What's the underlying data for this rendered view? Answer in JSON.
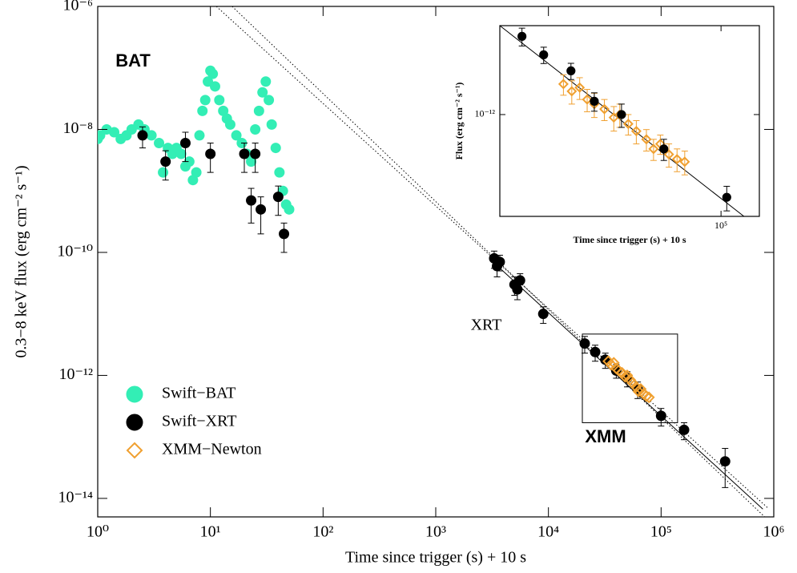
{
  "chart_data": [
    {
      "type": "scatter",
      "x_label": "Time since trigger (s) + 10 s",
      "y_label": "0.3−8 keV flux (erg cm⁻² s⁻¹)",
      "log_x": true,
      "log_y": true,
      "xlim": [
        1,
        1000000
      ],
      "ylim": [
        5e-15,
        1e-06
      ],
      "xticks": [
        {
          "value": 1,
          "label": "10⁰"
        },
        {
          "value": 10,
          "label": "10¹"
        },
        {
          "value": 100,
          "label": "10²"
        },
        {
          "value": 1000,
          "label": "10³"
        },
        {
          "value": 10000,
          "label": "10⁴"
        },
        {
          "value": 100000,
          "label": "10⁵"
        },
        {
          "value": 1000000,
          "label": "10⁶"
        }
      ],
      "yticks": [
        {
          "value": 1e-06,
          "label": "10⁻⁶"
        },
        {
          "value": 1e-08,
          "label": "10⁻⁸"
        },
        {
          "value": 1e-10,
          "label": "10⁻¹⁰"
        },
        {
          "value": 1e-12,
          "label": "10⁻¹²"
        },
        {
          "value": 1e-14,
          "label": "10⁻¹⁴"
        }
      ],
      "legend": "lower left",
      "series": [
        {
          "name": "Swift−BAT",
          "color": "#33eeb5",
          "marker": "circle",
          "filled": true,
          "x": [
            1.0,
            1.05,
            1.2,
            1.4,
            1.6,
            1.8,
            2.0,
            2.3,
            2.6,
            3.0,
            3.5,
            3.8,
            4.2,
            4.6,
            5.0,
            5.5,
            6.0,
            6.5,
            7.0,
            7.5,
            8.0,
            8.5,
            9.0,
            9.5,
            10,
            10.5,
            11,
            12,
            13,
            14,
            15,
            17,
            19,
            21,
            23,
            25,
            27,
            29,
            31,
            33,
            35,
            38,
            41,
            44,
            47,
            50
          ],
          "values": [
            7e-09,
            8e-09,
            1e-08,
            9e-09,
            7e-09,
            8e-09,
            1e-08,
            1.2e-08,
            1e-08,
            8e-09,
            6e-09,
            2e-09,
            5e-09,
            4e-09,
            5e-09,
            4e-09,
            2.5e-09,
            3e-09,
            1.5e-09,
            2e-09,
            8e-09,
            2e-08,
            3e-08,
            6e-08,
            9e-08,
            8e-08,
            5e-08,
            3e-08,
            2e-08,
            1.5e-08,
            1.2e-08,
            8e-09,
            6e-09,
            4e-09,
            3e-09,
            1e-08,
            2e-08,
            4e-08,
            6e-08,
            3e-08,
            1.2e-08,
            5e-09,
            2e-09,
            1e-09,
            6e-10,
            5e-10
          ]
        },
        {
          "name": "Swift−XRT",
          "color": "#000000",
          "marker": "circle",
          "filled": true,
          "x": [
            2.5,
            4,
            6,
            10,
            20,
            23,
            25,
            28,
            40,
            45,
            3300,
            3500,
            3700,
            5000,
            5300,
            5600,
            9000,
            21000,
            26000,
            32000,
            40000,
            50000,
            62000,
            100000,
            160000,
            370000
          ],
          "values": [
            8e-09,
            3e-09,
            6e-09,
            4e-09,
            4e-09,
            7e-10,
            4e-09,
            5e-10,
            8e-10,
            2e-10,
            8e-11,
            6e-11,
            7e-11,
            3e-11,
            2.5e-11,
            3.5e-11,
            1e-11,
            3.3e-12,
            2.4e-12,
            1.8e-12,
            1.2e-12,
            9e-13,
            6e-13,
            2.2e-13,
            1.3e-13,
            4e-14
          ],
          "yerr": [
            3e-09,
            1.5e-09,
            3e-09,
            2e-09,
            2e-09,
            4e-10,
            2e-09,
            3e-10,
            4e-10,
            1e-10,
            2.5e-11,
            2e-11,
            2e-11,
            1e-11,
            8e-12,
            1e-11,
            3e-12,
            1e-12,
            7e-13,
            5e-13,
            3e-13,
            2.5e-13,
            1.8e-13,
            7e-14,
            4e-14,
            2.5e-14
          ]
        },
        {
          "name": "XMM−Newton",
          "color": "#f0a030",
          "marker": "diamond",
          "filled": false,
          "x": [
            34000,
            36000,
            38000,
            40000,
            42000,
            45000,
            48000,
            50000,
            53000,
            56000,
            60000,
            63000,
            66000,
            70000,
            74000,
            78000
          ],
          "values": [
            1.7e-12,
            1.5e-12,
            1.6e-12,
            1.3e-12,
            1.2e-12,
            1.1e-12,
            9.5e-13,
            1e-12,
            8.5e-13,
            7.5e-13,
            6.5e-13,
            5.5e-13,
            6e-13,
            5e-13,
            4.6e-13,
            4.4e-13
          ]
        }
      ],
      "fit_lines": [
        {
          "style": "dotted",
          "x": [
            11.3,
            900000
          ],
          "values": [
            1e-06,
            6.8e-15
          ]
        },
        {
          "style": "dotted",
          "x": [
            15.6,
            830000
          ],
          "values": [
            1e-06,
            5e-15
          ]
        },
        {
          "style": "solid",
          "x": [
            3000,
            800000
          ],
          "values": [
            7.9e-11,
            6.7e-15
          ]
        }
      ],
      "annotations": [
        {
          "text": "BAT",
          "color": "#33eeb5"
        },
        {
          "text": "XRT",
          "color": "#000000"
        },
        {
          "text": "XMM",
          "color": "#f0a030"
        }
      ],
      "zoom_box": {
        "xlim": [
          20000,
          140000
        ],
        "ylim": [
          1.7e-13,
          4.7e-12
        ]
      }
    },
    {
      "type": "scatter",
      "x_label": "Time since trigger (s) + 10 s",
      "y_label": "Flux (erg cm⁻² s⁻¹)",
      "log_x": true,
      "log_y": true,
      "xlim": [
        22000,
        130000
      ],
      "ylim": [
        1.7e-13,
        4.7e-12
      ],
      "xticks": [
        {
          "value": 100000,
          "label": "10⁵"
        }
      ],
      "yticks": [
        {
          "value": 1e-12,
          "label": "10⁻¹²"
        }
      ],
      "series": [
        {
          "color": "#f0a030",
          "marker": "diamond",
          "filled": false,
          "x": [
            34000,
            36000,
            38000,
            40000,
            42000,
            45000,
            48000,
            50000,
            53000,
            56000,
            60000,
            63000,
            66000,
            70000,
            74000,
            78000
          ],
          "values": [
            1.7e-12,
            1.5e-12,
            1.6e-12,
            1.3e-12,
            1.2e-12,
            1.1e-12,
            9.5e-13,
            1e-12,
            8.5e-13,
            7.5e-13,
            6.5e-13,
            5.5e-13,
            6e-13,
            5e-13,
            4.6e-13,
            4.4e-13
          ],
          "yerr": [
            3e-13,
            3e-13,
            3e-13,
            2.5e-13,
            2.5e-13,
            2e-13,
            2e-13,
            2e-13,
            1.5e-13,
            1.5e-13,
            1.2e-13,
            1e-13,
            1e-13,
            1e-13,
            9e-14,
            9e-14
          ]
        },
        {
          "color": "#000000",
          "marker": "circle",
          "filled": true,
          "x": [
            25600,
            29700,
            35800,
            42000,
            50600,
            67600,
            104000
          ],
          "values": [
            3.9e-12,
            2.83e-12,
            2.14e-12,
            1.26e-12,
            1e-12,
            5.5e-13,
            2.37e-13
          ],
          "yerr": [
            6e-13,
            4e-13,
            3e-13,
            2e-13,
            2e-13,
            1e-13,
            5e-14
          ]
        }
      ],
      "fit_lines": [
        {
          "style": "solid",
          "x": [
            22000,
            117000
          ],
          "values": [
            4.7e-12,
            1.7e-13
          ]
        }
      ]
    }
  ]
}
